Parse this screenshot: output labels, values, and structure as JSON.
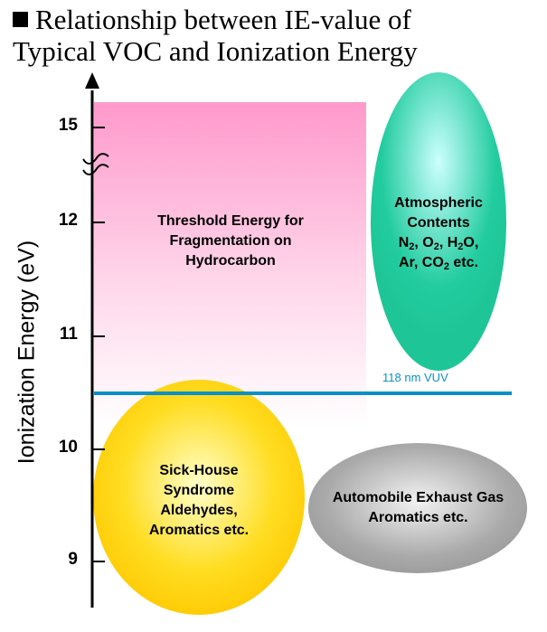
{
  "title": {
    "line1": "Relationship between IE-value of",
    "line2": "Typical VOC and Ionization Energy"
  },
  "axis": {
    "ylabel": "Ionization Energy (eV)",
    "ticks": [
      "15",
      "12",
      "11",
      "10",
      "9"
    ]
  },
  "regions": {
    "threshold": [
      "Threshold Energy for",
      "Fragmentation on",
      "Hydrocarbon"
    ],
    "atmospheric": {
      "l1": "Atmospheric",
      "l2": "Contents",
      "n": "N",
      "o": "O",
      "h": "H",
      "ho": "O,",
      "ar": "Ar, CO",
      "etc": "etc.",
      "sub2": "2"
    },
    "sickhouse": [
      "Sick-House",
      "Syndrome",
      "Aldehydes,",
      "Aromatics etc."
    ],
    "automobile": [
      "Automobile Exhaust Gas",
      "Aromatics etc."
    ]
  },
  "vuv_line": {
    "label": "118 nm VUV",
    "color": "#0a8fc6"
  },
  "colors": {
    "pink": "#ff99cc",
    "green": "#1fcc99",
    "yellow": "#ffcc00",
    "gray": "#999999"
  }
}
